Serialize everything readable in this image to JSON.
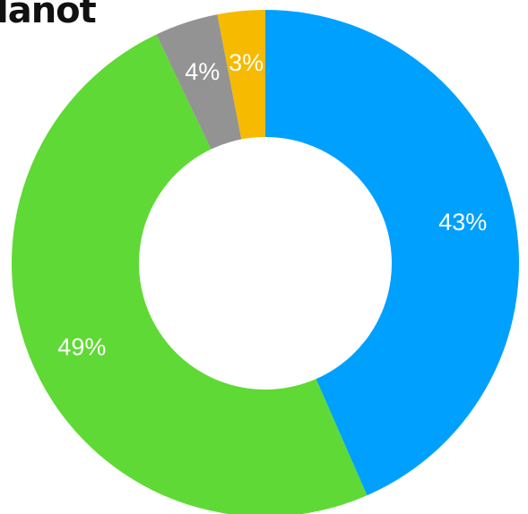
{
  "chart_data": {
    "type": "pie",
    "variant": "donut",
    "title": "lanot",
    "slices": [
      {
        "value": 43,
        "label": "43%",
        "color": "#00A0FF"
      },
      {
        "value": 49,
        "label": "49%",
        "color": "#5FD935"
      },
      {
        "value": 4,
        "label": "4%",
        "color": "#939393"
      },
      {
        "value": 3,
        "label": "3%",
        "color": "#F6BA00"
      }
    ],
    "start": "12 o'clock, clockwise",
    "legend": "none"
  }
}
